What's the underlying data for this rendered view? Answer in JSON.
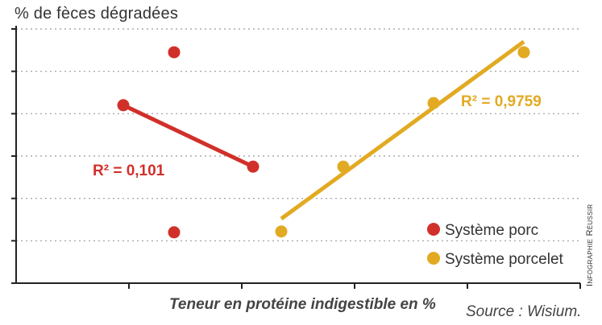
{
  "chart_data": {
    "type": "scatter",
    "title": "",
    "ylabel": "% de fèces dégradées",
    "xlabel": "Teneur en protéine indigestible en %",
    "ylim": [
      0,
      6
    ],
    "xlim": [
      0,
      5
    ],
    "grid": true,
    "legend_position": "bottom-right",
    "series": [
      {
        "name": "Système porc",
        "color": "#d1302a",
        "points": [
          {
            "x": 0.95,
            "y": 4.2
          },
          {
            "x": 1.4,
            "y": 5.45
          },
          {
            "x": 1.4,
            "y": 1.2
          },
          {
            "x": 2.1,
            "y": 2.75
          }
        ],
        "trend": {
          "x": [
            0.95,
            2.1
          ],
          "y": [
            4.2,
            2.75
          ]
        },
        "r2_label": "R² = 0,101"
      },
      {
        "name": "Système porcelet",
        "color": "#e2aa22",
        "points": [
          {
            "x": 2.35,
            "y": 1.22
          },
          {
            "x": 2.9,
            "y": 2.75
          },
          {
            "x": 3.7,
            "y": 4.25
          },
          {
            "x": 4.5,
            "y": 5.45
          }
        ],
        "trend": {
          "x": [
            2.35,
            4.5
          ],
          "y": [
            1.52,
            5.7
          ]
        },
        "r2_label": "R² = 0,9759"
      }
    ]
  },
  "source": "Source : Wisium.",
  "credit": "Infographie Réussir"
}
